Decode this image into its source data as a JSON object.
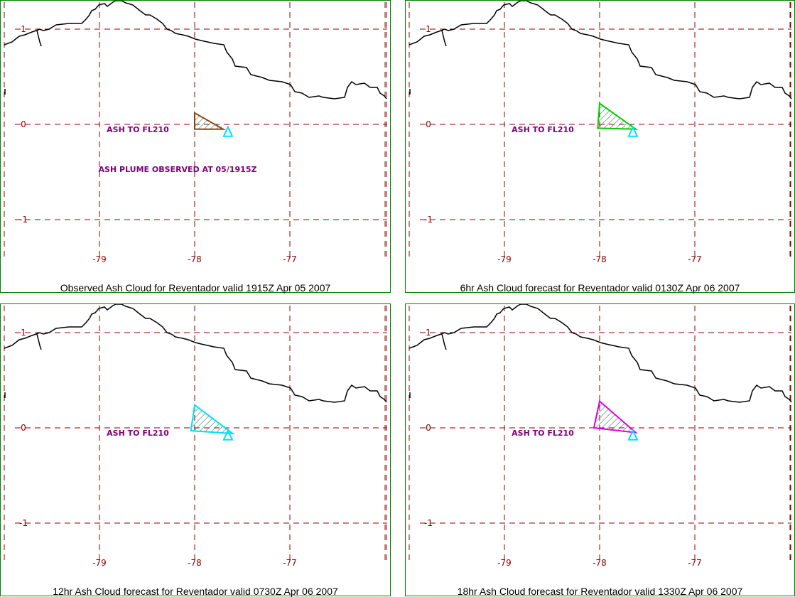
{
  "colors": {
    "grid": "#8b0000",
    "axis_label": "#8b0000",
    "annotation": "#800080",
    "border": "#008000",
    "coastline": "#000000",
    "volcano": "#00e0ff",
    "hatch": "#2e8b57"
  },
  "icons": {
    "volcano": "volcano-triangle-icon"
  },
  "chart_data": [
    {
      "type": "map",
      "caption": "Observed Ash Cloud for Reventador valid 1915Z Apr 05 2007",
      "longitude_ticks": [
        "-79",
        "-78",
        "-77"
      ],
      "latitude_ticks": [
        "1",
        "0",
        "-1"
      ],
      "annotations": [
        "ASH TO FL210",
        "ASH PLUME OBSERVED AT 05/1915Z"
      ],
      "ash_cloud": {
        "color": "#8b4513",
        "vertices": [
          [
            -78.0,
            0.12
          ],
          [
            -78.0,
            -0.05
          ],
          [
            -77.7,
            -0.05
          ]
        ]
      },
      "volcano": {
        "lon": -77.65,
        "lat": -0.08
      }
    },
    {
      "type": "map",
      "caption": "6hr Ash Cloud forecast for Reventador valid 0130Z Apr 06 2007",
      "longitude_ticks": [
        "-79",
        "-78",
        "-77"
      ],
      "latitude_ticks": [
        "1",
        "0",
        "-1"
      ],
      "annotations": [
        "ASH TO FL210"
      ],
      "ash_cloud": {
        "color": "#00cc00",
        "vertices": [
          [
            -78.0,
            0.22
          ],
          [
            -78.02,
            -0.04
          ],
          [
            -77.62,
            -0.05
          ]
        ]
      },
      "volcano": {
        "lon": -77.65,
        "lat": -0.08
      }
    },
    {
      "type": "map",
      "caption": "12hr Ash Cloud forecast for Reventador valid 0730Z Apr 06 2007",
      "longitude_ticks": [
        "-79",
        "-78",
        "-77"
      ],
      "latitude_ticks": [
        "1",
        "0",
        "-1"
      ],
      "annotations": [
        "ASH TO FL210"
      ],
      "ash_cloud": {
        "color": "#00e0ff",
        "vertices": [
          [
            -78.0,
            0.24
          ],
          [
            -78.04,
            -0.03
          ],
          [
            -77.6,
            -0.06
          ]
        ]
      },
      "volcano": {
        "lon": -77.65,
        "lat": -0.08
      }
    },
    {
      "type": "map",
      "caption": "18hr Ash Cloud forecast for Reventador valid 1330Z Apr 06 2007",
      "longitude_ticks": [
        "-79",
        "-78",
        "-77"
      ],
      "latitude_ticks": [
        "1",
        "0",
        "-1"
      ],
      "annotations": [
        "ASH TO FL210"
      ],
      "ash_cloud": {
        "color": "#e000e0",
        "vertices": [
          [
            -78.0,
            0.28
          ],
          [
            -78.06,
            0.0
          ],
          [
            -77.62,
            -0.05
          ]
        ]
      },
      "volcano": {
        "lon": -77.65,
        "lat": -0.08
      }
    }
  ]
}
